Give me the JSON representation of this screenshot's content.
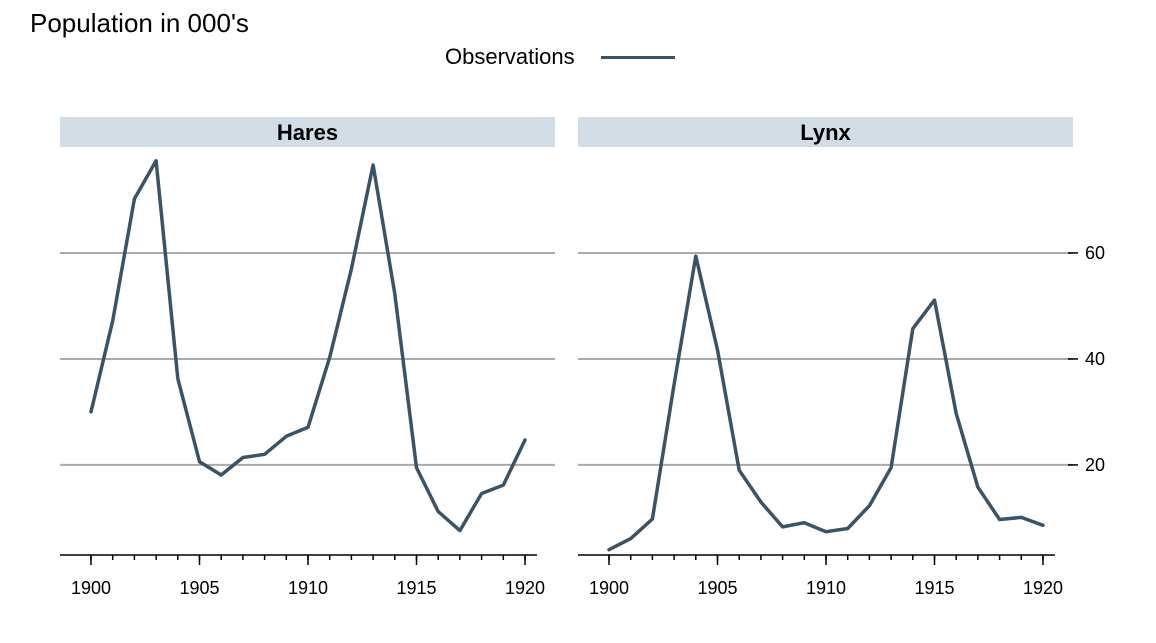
{
  "chart_data": {
    "type": "line",
    "title": "Population in 000's",
    "legend": {
      "label": "Observations",
      "placement": "top-center"
    },
    "series_color": "#3b5366",
    "facet_header_color": "#d1dce5",
    "x": [
      1900,
      1901,
      1902,
      1903,
      1904,
      1905,
      1906,
      1907,
      1908,
      1909,
      1910,
      1911,
      1912,
      1913,
      1914,
      1915,
      1916,
      1917,
      1918,
      1919,
      1920
    ],
    "xticks": [
      1900,
      1905,
      1910,
      1915,
      1920
    ],
    "yticks": [
      20,
      40,
      60
    ],
    "ylim": [
      3,
      80
    ],
    "grid": true,
    "yaxis_side": "right",
    "panels": [
      {
        "name": "Hares",
        "values": [
          30,
          47.2,
          70.2,
          77.4,
          36.3,
          20.6,
          18.1,
          21.4,
          22,
          25.4,
          27.1,
          40.3,
          57,
          76.6,
          52.3,
          19.5,
          11.2,
          7.6,
          14.6,
          16.2,
          24.7
        ]
      },
      {
        "name": "Lynx",
        "values": [
          4,
          6.1,
          9.8,
          35.2,
          59.4,
          41.7,
          19,
          13,
          8.3,
          9.1,
          7.4,
          8,
          12.3,
          19.5,
          45.7,
          51.1,
          29.7,
          15.8,
          9.7,
          10.1,
          8.6
        ]
      }
    ]
  }
}
